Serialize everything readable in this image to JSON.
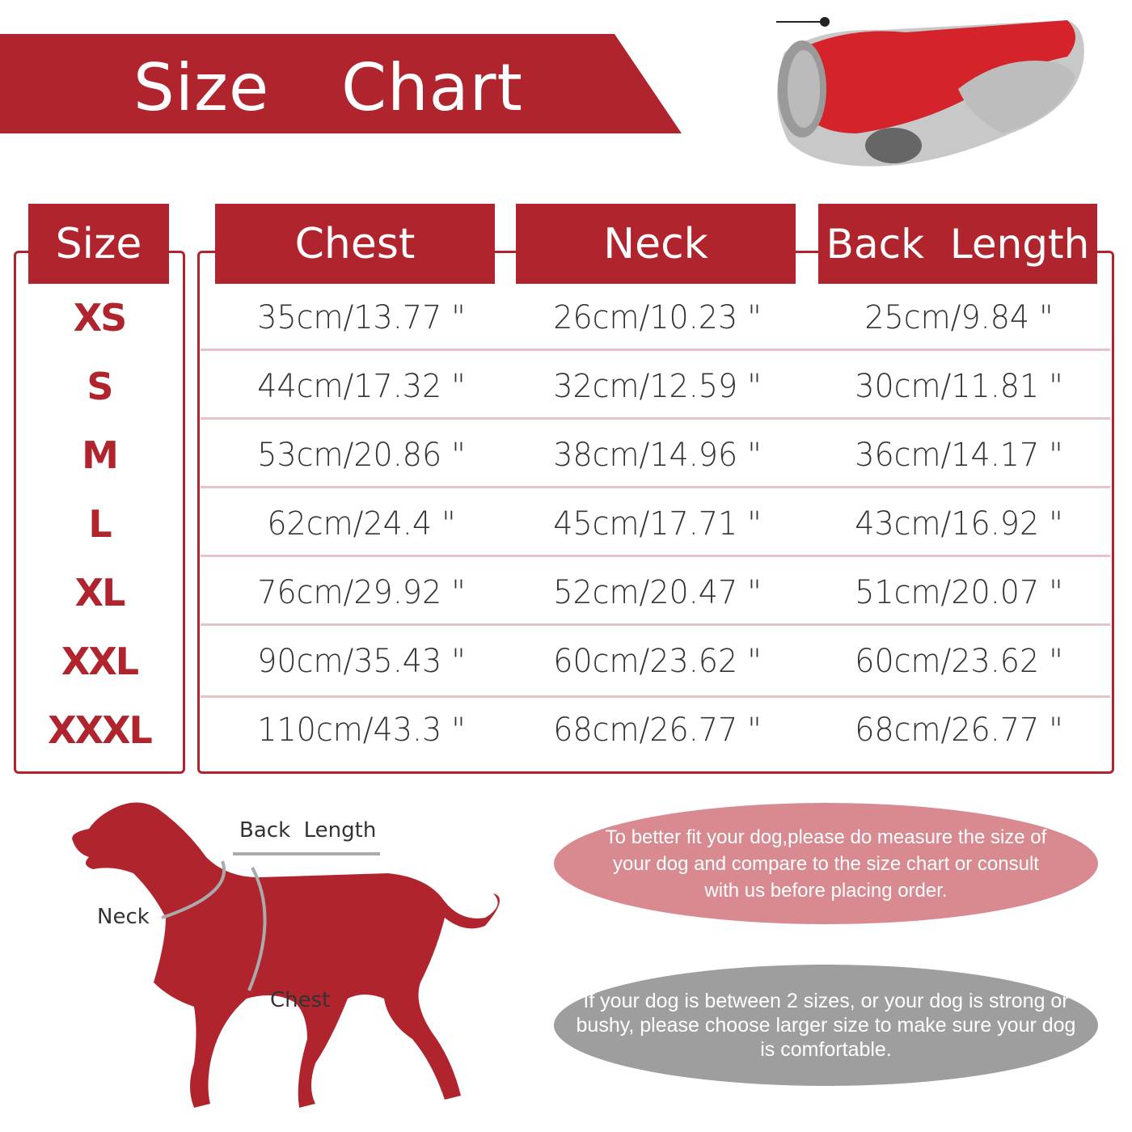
{
  "title": "Size  Chart",
  "colors": {
    "accent": "#b0242e",
    "note_pink": "#d98a90",
    "note_gray": "#9e9e9e",
    "divider": "#e6c3c7"
  },
  "product_image": "red-gray-quilted-dog-jacket",
  "table": {
    "headers": {
      "size": "Size",
      "chest": "Chest",
      "neck": "Neck",
      "back": "Back  Length"
    },
    "rows": [
      {
        "size": "XS",
        "chest": "35cm/13.77 \"",
        "neck": "26cm/10.23 \"",
        "back": "25cm/9.84 \""
      },
      {
        "size": "S",
        "chest": "44cm/17.32 \"",
        "neck": "32cm/12.59 \"",
        "back": "30cm/11.81 \""
      },
      {
        "size": "M",
        "chest": "53cm/20.86 \"",
        "neck": "38cm/14.96 \"",
        "back": "36cm/14.17 \""
      },
      {
        "size": "L",
        "chest": "62cm/24.4 \"",
        "neck": "45cm/17.71 \"",
        "back": "43cm/16.92 \""
      },
      {
        "size": "XL",
        "chest": "76cm/29.92 \"",
        "neck": "52cm/20.47 \"",
        "back": "51cm/20.07 \""
      },
      {
        "size": "XXL",
        "chest": "90cm/35.43 \"",
        "neck": "60cm/23.62 \"",
        "back": "60cm/23.62 \""
      },
      {
        "size": "XXXL",
        "chest": "110cm/43.3 \"",
        "neck": "68cm/26.77 \"",
        "back": "68cm/26.77 \""
      }
    ]
  },
  "diagram": {
    "back_length": "Back  Length",
    "neck": "Neck",
    "chest": "Chest"
  },
  "notes": {
    "measure": "To better fit your dog,please do measure the size of your dog and compare to the size chart or consult with  us before placing order.",
    "between_sizes": "If your dog is between 2 sizes, or your dog is strong or bushy, please choose larger size to make sure your dog is comfortable."
  }
}
